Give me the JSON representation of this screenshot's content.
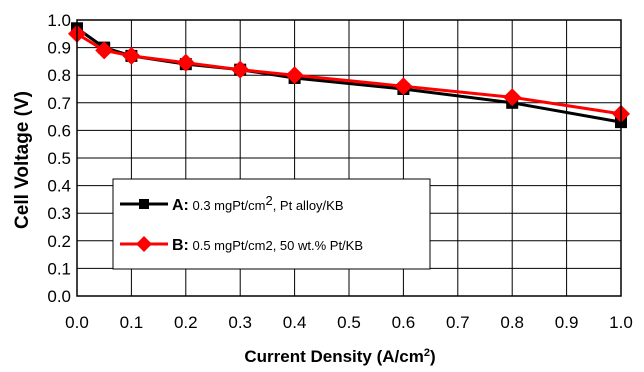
{
  "chart_data": {
    "type": "line",
    "title": "",
    "xlabel_main": "Current Density (A/cm",
    "xlabel_sup": "2",
    "xlabel_end": ")",
    "ylabel": "Cell Voltage (V)",
    "xlim": [
      0,
      1.0
    ],
    "ylim": [
      0,
      1.0
    ],
    "x_ticks": [
      "0.0",
      "0.1",
      "0.2",
      "0.3",
      "0.4",
      "0.5",
      "0.6",
      "0.7",
      "0.8",
      "0.9",
      "1.0"
    ],
    "y_ticks": [
      "0.0",
      "0.1",
      "0.2",
      "0.3",
      "0.4",
      "0.5",
      "0.6",
      "0.7",
      "0.8",
      "0.9",
      "1.0"
    ],
    "grid": true,
    "legend_placement": "lower-left",
    "series": [
      {
        "key": "A:",
        "desc_pre": " 0.3 mgPt/cm",
        "desc_sup": "2",
        "desc_post": ", Pt alloy/KB",
        "color": "#000000",
        "marker": "square",
        "x": [
          0.0,
          0.05,
          0.1,
          0.2,
          0.3,
          0.4,
          0.6,
          0.8,
          1.0
        ],
        "y": [
          0.97,
          0.9,
          0.87,
          0.84,
          0.82,
          0.79,
          0.75,
          0.7,
          0.63
        ]
      },
      {
        "key": "B:",
        "desc_pre": " 0.5 mgPt/cm2, 50 wt.% Pt/KB",
        "desc_sup": "",
        "desc_post": "",
        "color": "#ff0000",
        "marker": "diamond",
        "x": [
          0.0,
          0.05,
          0.1,
          0.2,
          0.3,
          0.4,
          0.6,
          0.8,
          1.0
        ],
        "y": [
          0.95,
          0.89,
          0.87,
          0.845,
          0.82,
          0.8,
          0.76,
          0.72,
          0.66
        ]
      }
    ]
  }
}
